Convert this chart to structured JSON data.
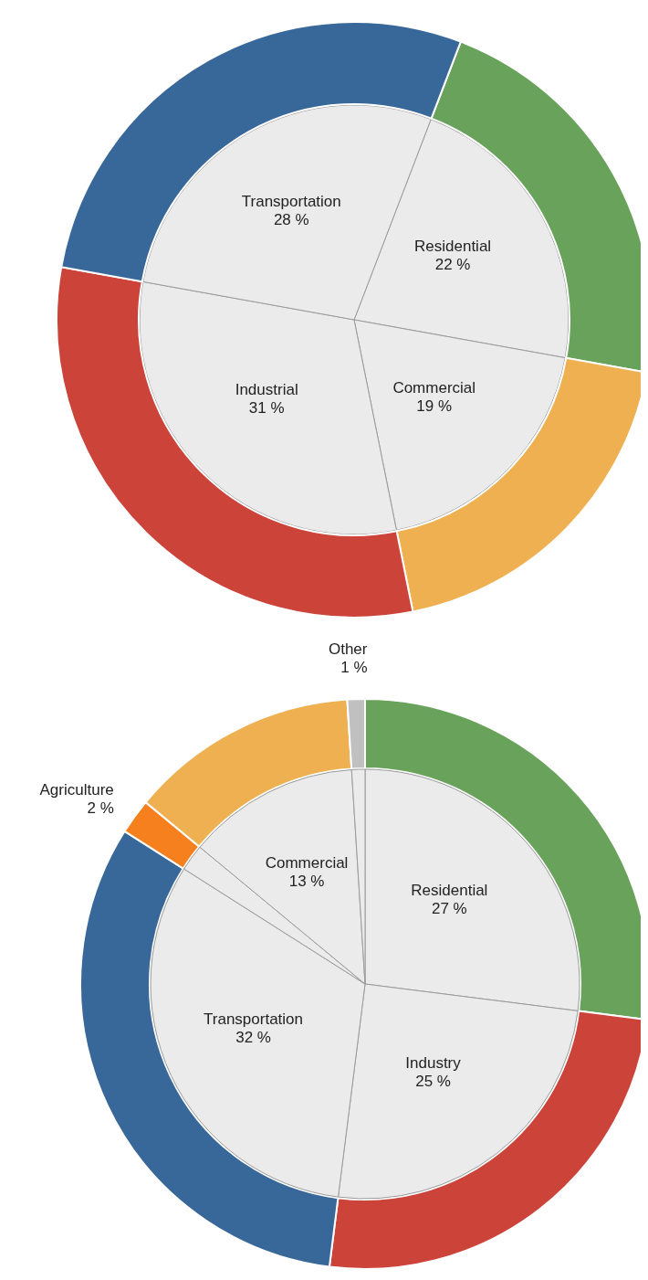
{
  "chart_data": [
    {
      "type": "pie",
      "categories": [
        "Residential",
        "Commercial",
        "Industrial",
        "Transportation"
      ],
      "value_labels": [
        "22 %",
        "19 %",
        "31 %",
        "28 %"
      ],
      "series": [
        {
          "values": [
            22,
            19,
            31,
            28
          ],
          "colors": [
            "#ebebeb",
            "#ebebeb",
            "#ebebeb",
            "#ebebeb"
          ]
        },
        {
          "type": "donut",
          "values": [
            22,
            19,
            31,
            28
          ],
          "colors": [
            "#69a35b",
            "#eeb050",
            "#cc433a",
            "#38679a"
          ]
        }
      ]
    },
    {
      "type": "pie",
      "categories": [
        "Residential",
        "Industry",
        "Transportation",
        "Agriculture",
        "Commercial",
        "Other"
      ],
      "value_labels": [
        "27 %",
        "25 %",
        "32 %",
        "2 %",
        "13 %",
        "1 %"
      ],
      "series": [
        {
          "type": "donut",
          "values": [
            27,
            25,
            32,
            2,
            13,
            1
          ],
          "colors": [
            "#69a35b",
            "#cc433a",
            "#38679a",
            "#f5801d",
            "#eeb050",
            "#c0c0c0"
          ]
        },
        {
          "values": [
            27,
            25,
            32,
            2,
            13,
            1
          ],
          "colors": [
            "#ebebeb",
            "#ebebeb",
            "#ebebeb",
            "#ebebeb",
            "#ebebeb",
            "#ebebeb"
          ]
        }
      ]
    }
  ]
}
